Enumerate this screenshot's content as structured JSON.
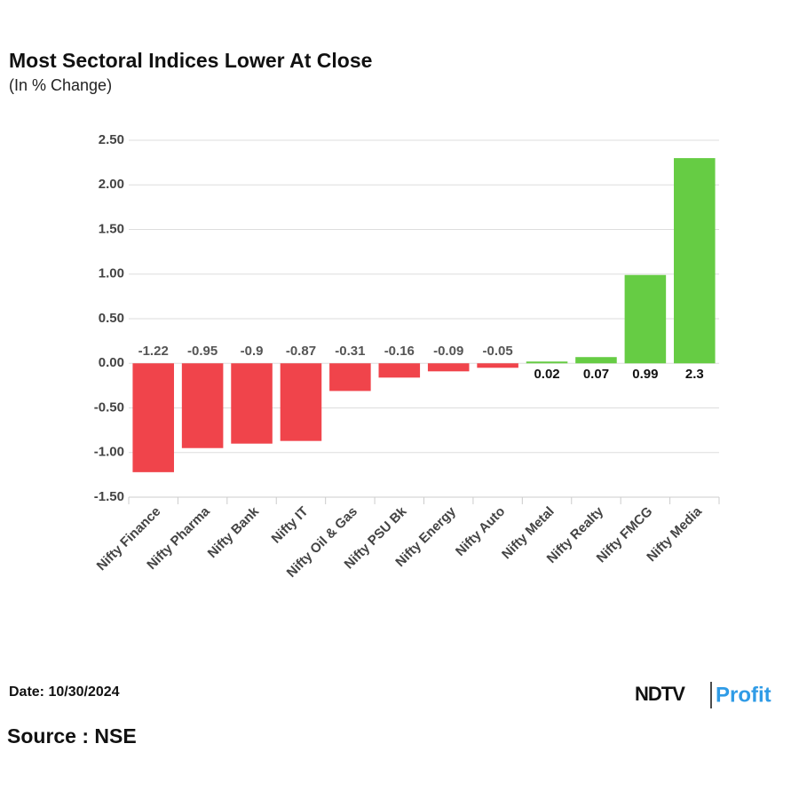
{
  "chart_data": {
    "type": "bar",
    "title": "Most Sectoral Indices Lower At Close",
    "subtitle": "(In % Change)",
    "categories": [
      "Nifty Finance",
      "Nifty Pharma",
      "Nifty Bank",
      "Nifty IT",
      "Nifty Oil & Gas",
      "Nifty PSU Bk",
      "Nifty Energy",
      "Nifty Auto",
      "Nifty Metal",
      "Nifty Realty",
      "Nifty FMCG",
      "Nifty Media"
    ],
    "values": [
      -1.22,
      -0.95,
      -0.9,
      -0.87,
      -0.31,
      -0.16,
      -0.09,
      -0.05,
      0.02,
      0.07,
      0.99,
      2.3
    ],
    "positive_color": "#66cc44",
    "negative_color": "#f0444b",
    "ylim": [
      -1.5,
      2.5
    ],
    "yticks": [
      {
        "value": -1.5,
        "label": "-1.50"
      },
      {
        "value": -1,
        "label": "-1.00"
      },
      {
        "value": -0.5,
        "label": "-0.50"
      },
      {
        "value": 0,
        "label": "0.00"
      },
      {
        "value": 0.5,
        "label": "0.50"
      },
      {
        "value": 1,
        "label": "1.00"
      },
      {
        "value": 1.5,
        "label": "1.50"
      },
      {
        "value": 2,
        "label": "2.00"
      },
      {
        "value": 2.5,
        "label": "2.50"
      }
    ],
    "grid": true
  },
  "footer": {
    "date": "Date: 10/30/2024",
    "source": "Source : NSE",
    "logo_left": "NDTV",
    "logo_right": "Profit"
  }
}
